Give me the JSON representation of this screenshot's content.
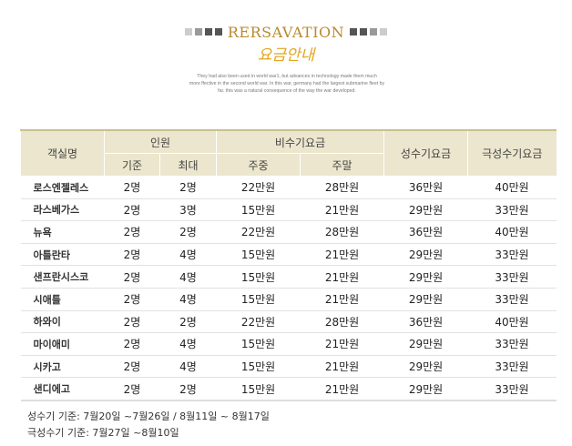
{
  "header": {
    "title": "RERSAVATION",
    "subtitle": "요금안내",
    "description_lines": [
      "They had also been used in world war1, but advances in technology made them much",
      "more ffective in the second world war. In this war, germany had the largest submarine fleet by",
      "far. this was a natural consequence of the way the war developed."
    ]
  },
  "table": {
    "headers": {
      "room": "객실명",
      "capacity": "인원",
      "capacity_base": "기준",
      "capacity_max": "최대",
      "off_season": "비수기요금",
      "weekday": "주중",
      "weekend": "주말",
      "peak": "성수기요금",
      "super_peak": "극성수기요금"
    },
    "rows": [
      [
        "로스엔젤레스",
        "2명",
        "2명",
        "22만원",
        "28만원",
        "36만원",
        "40만원"
      ],
      [
        "라스베가스",
        "2명",
        "3명",
        "15만원",
        "21만원",
        "29만원",
        "33만원"
      ],
      [
        "뉴욕",
        "2명",
        "2명",
        "22만원",
        "28만원",
        "36만원",
        "40만원"
      ],
      [
        "아틀란타",
        "2명",
        "4명",
        "15만원",
        "21만원",
        "29만원",
        "33만원"
      ],
      [
        "샌프란시스코",
        "2명",
        "4명",
        "15만원",
        "21만원",
        "29만원",
        "33만원"
      ],
      [
        "시애틀",
        "2명",
        "4명",
        "15만원",
        "21만원",
        "29만원",
        "33만원"
      ],
      [
        "하와이",
        "2명",
        "2명",
        "22만원",
        "28만원",
        "36만원",
        "40만원"
      ],
      [
        "마이애미",
        "2명",
        "4명",
        "15만원",
        "21만원",
        "29만원",
        "33만원"
      ],
      [
        "시카고",
        "2명",
        "4명",
        "15만원",
        "21만원",
        "29만원",
        "33만원"
      ],
      [
        "샌디에고",
        "2명",
        "2명",
        "15만원",
        "21만원",
        "29만원",
        "33만원"
      ]
    ]
  },
  "notes": {
    "peak_period": "성수기 기준: 7월20일 ~7월26일 / 8월11일 ~ 8월17일",
    "super_peak_period": "극성수기 기준: 7월27일 ~8월10일"
  },
  "colors": {
    "header_bg": "#ebe6cd",
    "title_gold": "#b98a2f",
    "subtitle_yellow": "#e3a61d"
  }
}
